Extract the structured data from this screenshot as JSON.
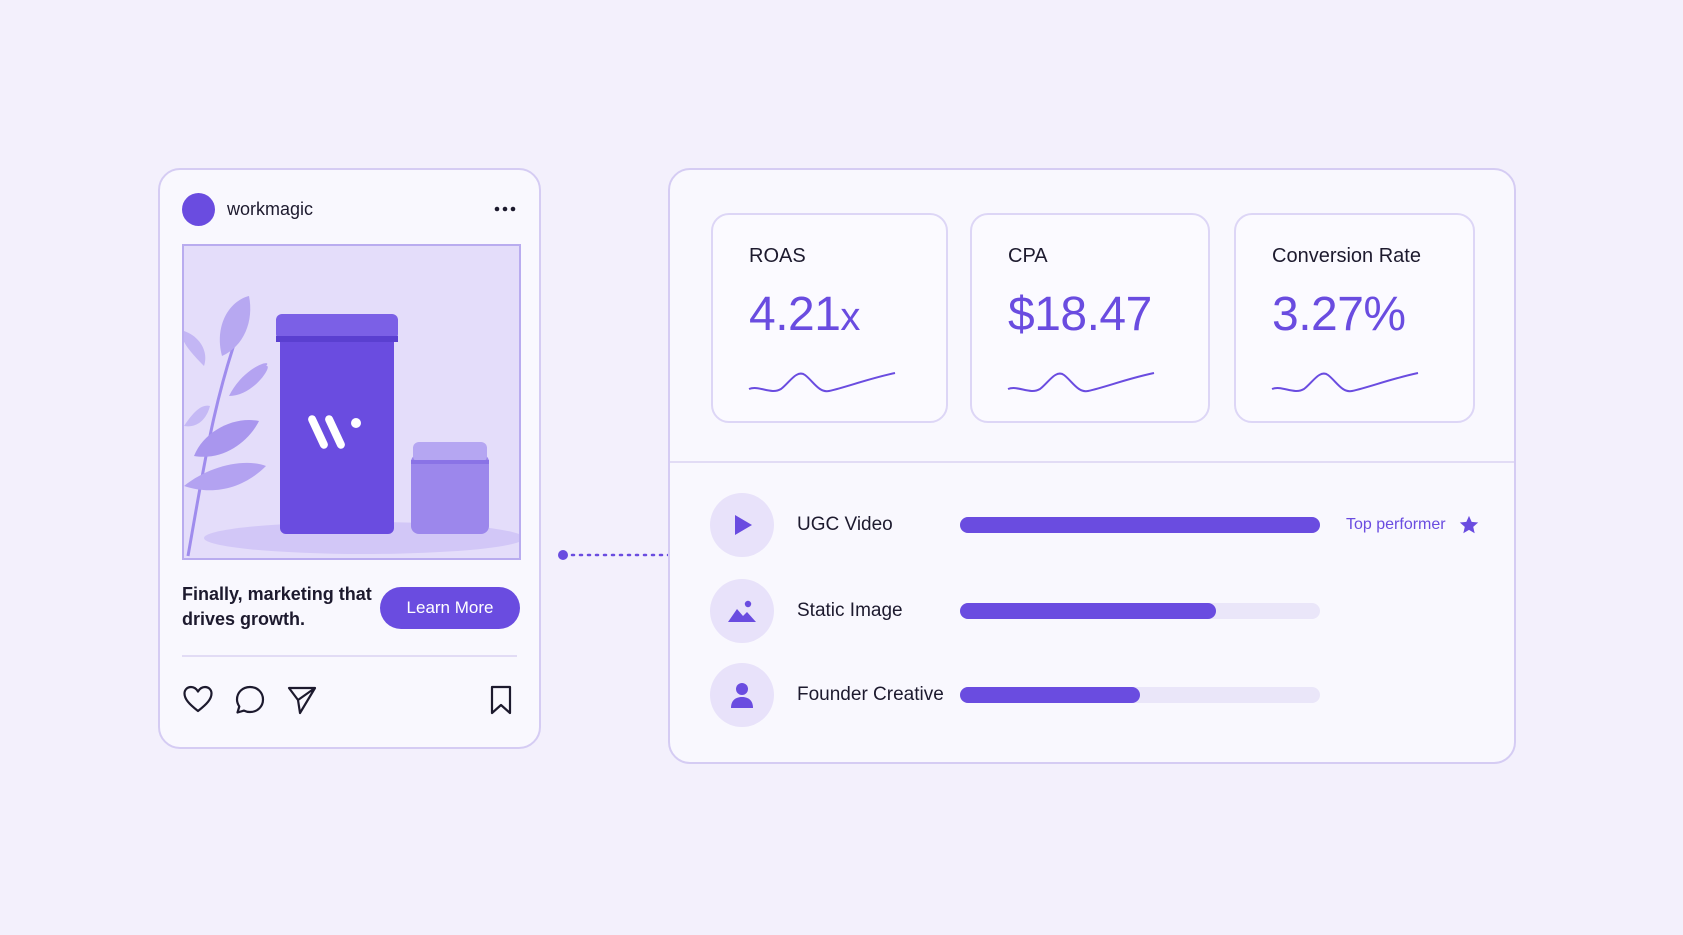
{
  "colors": {
    "accent": "#6a4ce0",
    "background": "#f3f0fc",
    "card": "#f9f8fe",
    "border": "#d5ccf3"
  },
  "post": {
    "brand_name": "workmagic",
    "caption": "Finally, marketing that drives growth.",
    "cta_label": "Learn More",
    "icons": [
      "more-icon",
      "heart-icon",
      "comment-icon",
      "share-icon",
      "bookmark-icon"
    ]
  },
  "metrics": [
    {
      "label": "ROAS",
      "value": "4.21",
      "unit": "x"
    },
    {
      "label": "CPA",
      "value": "$18.47",
      "unit": ""
    },
    {
      "label": "Conversion Rate",
      "value": "3.27%",
      "unit": ""
    }
  ],
  "creatives": [
    {
      "label": "UGC Video",
      "icon": "play-icon",
      "progress": 1.0,
      "tag": "Top performer",
      "tag_icon": "star-icon"
    },
    {
      "label": "Static Image",
      "icon": "image-icon",
      "progress": 0.71
    },
    {
      "label": "Founder Creative",
      "icon": "person-icon",
      "progress": 0.5
    }
  ]
}
